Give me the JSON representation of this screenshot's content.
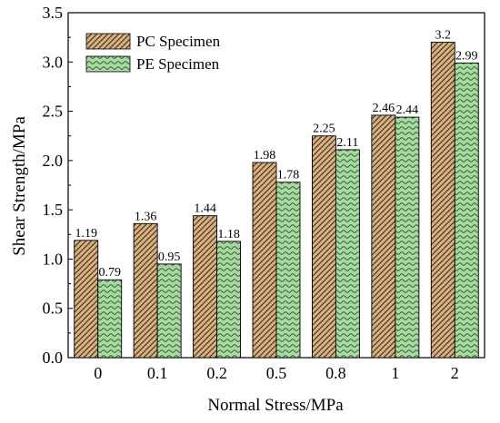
{
  "chart_data": {
    "type": "bar",
    "title": "",
    "xlabel": "Normal Stress/MPa",
    "ylabel": "Shear Strength/MPa",
    "categories": [
      "0",
      "0.1",
      "0.2",
      "0.5",
      "0.8",
      "1",
      "2"
    ],
    "ylim": [
      0.0,
      3.5
    ],
    "yticks": [
      "0.0",
      "0.5",
      "1.0",
      "1.5",
      "2.0",
      "2.5",
      "3.0",
      "3.5"
    ],
    "grid": false,
    "legend_position": "top-left",
    "series": [
      {
        "name": "PC Specimen",
        "values": [
          1.19,
          1.36,
          1.44,
          1.98,
          2.25,
          2.46,
          3.2
        ],
        "labels": [
          "1.19",
          "1.36",
          "1.44",
          "1.98",
          "2.25",
          "2.46",
          "3.2"
        ],
        "color": "#d8b07f",
        "pattern": "diagonal-hatch"
      },
      {
        "name": "PE Specimen",
        "values": [
          0.79,
          0.95,
          1.18,
          1.78,
          2.11,
          2.44,
          2.99
        ],
        "labels": [
          "0.79",
          "0.95",
          "1.18",
          "1.78",
          "2.11",
          "2.44",
          "2.99"
        ],
        "color": "#a6d9a0",
        "pattern": "wave"
      }
    ]
  }
}
